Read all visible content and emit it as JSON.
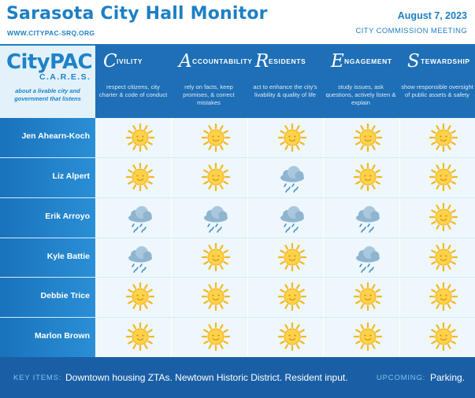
{
  "header": {
    "title": "Sarasota City Hall Monitor",
    "url": "WWW.CITYPAC-SRQ.ORG",
    "date": "August 7, 2023",
    "meeting": "CITY COMMISSION MEETING"
  },
  "logo": {
    "name": "CityPAC",
    "cares": "C.A.R.E.S.",
    "tagline": "about a livable city and government that listens"
  },
  "values": [
    {
      "letter": "C",
      "rest": "IVILITY",
      "description": "respect citizens, city charter & code of conduct"
    },
    {
      "letter": "A",
      "rest": "CCOUNTABILITY",
      "description": "rely on facts, keep promises, & correct mistakes"
    },
    {
      "letter": "R",
      "rest": "ESIDENTS",
      "description": "act to enhance the city's livability & quality of life"
    },
    {
      "letter": "E",
      "rest": "NGAGEMENT",
      "description": "study issues, ask questions, actively listen & explain"
    },
    {
      "letter": "S",
      "rest": "TEWARDSHIP",
      "description": "show responsible oversight of public assets & safety"
    }
  ],
  "rows": [
    {
      "name": "Jen Ahearn-Koch",
      "ratings": [
        "sun",
        "sun",
        "sun",
        "sun",
        "sun"
      ]
    },
    {
      "name": "Liz Alpert",
      "ratings": [
        "sun",
        "sun",
        "rain",
        "sun",
        "sun"
      ]
    },
    {
      "name": "Erik Arroyo",
      "ratings": [
        "rain",
        "rain",
        "rain",
        "rain",
        "sun"
      ]
    },
    {
      "name": "Kyle Battie",
      "ratings": [
        "rain",
        "sun",
        "sun",
        "rain",
        "sun"
      ]
    },
    {
      "name": "Debbie Trice",
      "ratings": [
        "sun",
        "sun",
        "sun",
        "sun",
        "sun"
      ]
    },
    {
      "name": "Marlon Brown",
      "ratings": [
        "sun",
        "sun",
        "sun",
        "sun",
        "sun"
      ]
    }
  ],
  "footer": {
    "key_label": "KEY ITEMS:",
    "key_text": "Downtown housing ZTAs. Newtown Historic District. Resident input.",
    "upcoming_label": "UPCOMING:",
    "upcoming_text": "Parking."
  },
  "colors": {
    "primary": "#1e7fc4",
    "header_band": "#1e6fb6",
    "footer": "#1a5fa5",
    "sun": "#f5b820",
    "cloud": "#8fb4cf",
    "rain": "#4f94c9"
  }
}
